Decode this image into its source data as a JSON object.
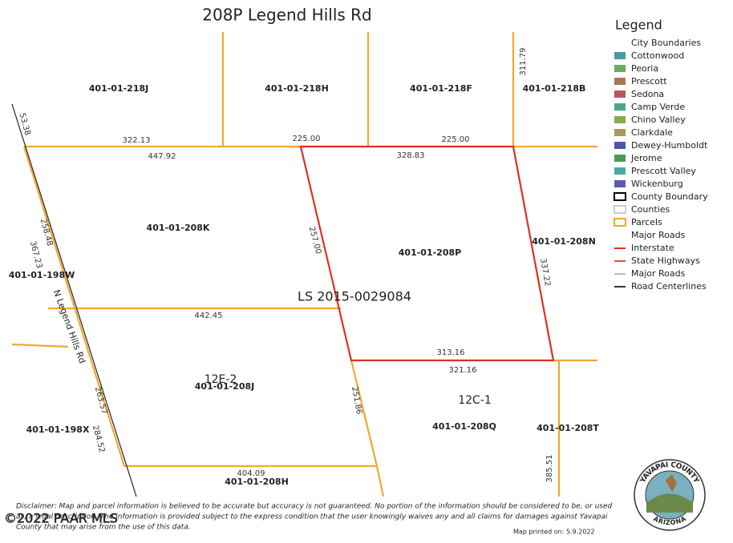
{
  "title": "208P Legend Hills Rd",
  "parcels": [
    "401-01-218J",
    "401-01-218H",
    "401-01-218F",
    "401-01-218B",
    "401-01-208K",
    "401-01-208P",
    "401-01-208N",
    "401-01-198W",
    "401-01-208J",
    "401-01-198X",
    "401-01-208Q",
    "401-01-208T",
    "401-01-208H"
  ],
  "dimensions": [
    "53.38",
    "322.13",
    "447.92",
    "225.00",
    "225.00",
    "328.83",
    "311.79",
    "258.48",
    "367.23",
    "257.00",
    "337.22",
    "442.45",
    "313.16",
    "321.16",
    "263.57",
    "284.52",
    "251.86",
    "404.09",
    "385.51"
  ],
  "annotations": [
    "LS 2015-0029084",
    "12E-2",
    "12C-1"
  ],
  "road_name": "N Legend Hills Rd",
  "legend": {
    "title": "Legend",
    "items": [
      {
        "label": "City Boundaries"
      },
      {
        "label": "Cottonwood",
        "swatch": "#4a9a9e"
      },
      {
        "label": "Peoria",
        "swatch": "#6aae5a"
      },
      {
        "label": "Prescott",
        "swatch": "#a8785a"
      },
      {
        "label": "Sedona",
        "swatch": "#b8565a"
      },
      {
        "label": "Camp Verde",
        "swatch": "#4aa888"
      },
      {
        "label": "Chino Valley",
        "swatch": "#8aaa4a"
      },
      {
        "label": "Clarkdale",
        "swatch": "#a8985a"
      },
      {
        "label": "Dewey-Humboldt",
        "swatch": "#4a56b0"
      },
      {
        "label": "Jerome",
        "swatch": "#4a9a5a"
      },
      {
        "label": "Prescott Valley",
        "swatch": "#4aaaa0"
      },
      {
        "label": "Wickenburg",
        "swatch": "#5a5ab0"
      },
      {
        "label": "County Boundary",
        "outline": "#000000"
      },
      {
        "label": "Counties",
        "outline": "#cccccc"
      },
      {
        "label": "Parcels",
        "outline": "#f0a830"
      },
      {
        "label": "Major Roads"
      },
      {
        "label": "Interstate",
        "line": "#e03020"
      },
      {
        "label": "State Highways",
        "line": "#f04a20"
      },
      {
        "label": "Major Roads",
        "line": "#bbbbbb"
      },
      {
        "label": "Road Centerlines",
        "line": "#333333"
      }
    ]
  },
  "seal": {
    "top": "YAVAPAI COUNTY",
    "bottom": "ARIZONA"
  },
  "disclaimer": [
    "Disclaimer: Map and parcel information is believed to be accurate but accuracy is not guaranteed. No portion of the information should be considered to be, or used",
    "as, a legal description. The information is provided subject to the express condition that the user knowingly waives any and all claims for damages against Yavapai",
    "County that may arise from the use of this data."
  ],
  "printed": "Map printed on: 5.9.2022",
  "watermark": "©2022 PAAR MLS"
}
